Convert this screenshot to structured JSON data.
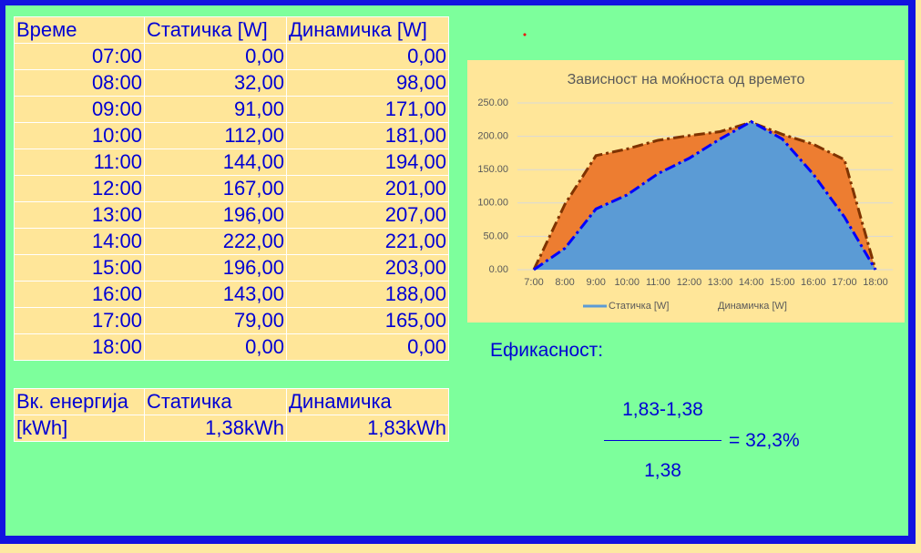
{
  "table": {
    "header": [
      "Време",
      "Статичка [W]",
      "Динамичка [W]"
    ],
    "rows": [
      [
        "07:00",
        "0,00",
        "0,00"
      ],
      [
        "08:00",
        "32,00",
        "98,00"
      ],
      [
        "09:00",
        "91,00",
        "171,00"
      ],
      [
        "10:00",
        "112,00",
        "181,00"
      ],
      [
        "11:00",
        "144,00",
        "194,00"
      ],
      [
        "12:00",
        "167,00",
        "201,00"
      ],
      [
        "13:00",
        "196,00",
        "207,00"
      ],
      [
        "14:00",
        "222,00",
        "221,00"
      ],
      [
        "15:00",
        "196,00",
        "203,00"
      ],
      [
        "16:00",
        "143,00",
        "188,00"
      ],
      [
        "17:00",
        "79,00",
        "165,00"
      ],
      [
        "18:00",
        "0,00",
        "0,00"
      ]
    ]
  },
  "energy_table": {
    "rows": [
      [
        "Вк. енергија",
        "Статичка",
        "Динамичка"
      ],
      [
        "[kWh]",
        "1,38kWh",
        "1,83kWh"
      ]
    ]
  },
  "efficiency": {
    "label": "Ефикасност:",
    "numerator": "1,83-1,38",
    "denominator": "1,38",
    "result": "= 32,3%"
  },
  "chart_data": {
    "type": "area",
    "title": "Зависност на моќноста од времето",
    "categories": [
      "7:00",
      "8:00",
      "9:00",
      "10:00",
      "11:00",
      "12:00",
      "13:00",
      "14:00",
      "15:00",
      "16:00",
      "17:00",
      "18:00"
    ],
    "series": [
      {
        "name": "Статичка [W]",
        "color": "#5b9bd5",
        "line_color": "#0000ff",
        "values": [
          0,
          32,
          91,
          112,
          144,
          167,
          196,
          222,
          196,
          143,
          79,
          0
        ]
      },
      {
        "name": "Динамичка [W]",
        "color": "#ed7d31",
        "line_color": "#7f3300",
        "values": [
          0,
          98,
          171,
          181,
          194,
          201,
          207,
          221,
          203,
          188,
          165,
          0
        ]
      }
    ],
    "ylim": [
      0,
      250
    ],
    "yticks": [
      {
        "value": 0,
        "label": "0.00"
      },
      {
        "value": 50,
        "label": "50.00"
      },
      {
        "value": 100,
        "label": "100.00"
      },
      {
        "value": 150,
        "label": "150.00"
      },
      {
        "value": 200,
        "label": "200.00"
      },
      {
        "value": 250,
        "label": "250.00"
      }
    ],
    "grid": true
  }
}
